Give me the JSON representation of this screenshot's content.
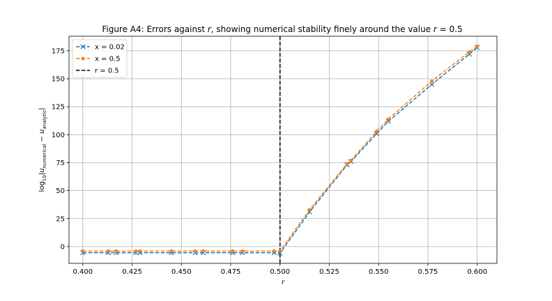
{
  "chart_data": {
    "type": "line",
    "title": "Figure A4: Errors against r, showing numerical stability finely around the value r = 0.5",
    "xlabel": "r",
    "ylabel": "log10|u_numerical − u_analytic|",
    "xlim": [
      0.393,
      0.61
    ],
    "ylim": [
      -15,
      188
    ],
    "xticks": [
      0.4,
      0.425,
      0.45,
      0.475,
      0.5,
      0.525,
      0.55,
      0.575,
      0.6
    ],
    "xtick_labels": [
      "0.400",
      "0.425",
      "0.450",
      "0.475",
      "0.500",
      "0.525",
      "0.550",
      "0.575",
      "0.600"
    ],
    "yticks": [
      0,
      25,
      50,
      75,
      100,
      125,
      150,
      175
    ],
    "ytick_labels": [
      "0",
      "25",
      "50",
      "75",
      "100",
      "125",
      "150",
      "175"
    ],
    "grid": true,
    "legend_position": "top-left",
    "vline": {
      "x": 0.5,
      "label": "r = 0.5",
      "color": "#000000"
    },
    "series": [
      {
        "name": "x = 0.02",
        "color": "#1f77b4",
        "marker": "x",
        "x": [
          0.4,
          0.413,
          0.417,
          0.427,
          0.429,
          0.445,
          0.457,
          0.461,
          0.476,
          0.481,
          0.497,
          0.5,
          0.515,
          0.534,
          0.536,
          0.549,
          0.555,
          0.577,
          0.596,
          0.6
        ],
        "y": [
          -5.5,
          -5.5,
          -5.5,
          -5.5,
          -5.5,
          -5.5,
          -5.5,
          -5.5,
          -5.5,
          -5.5,
          -5.5,
          -6,
          31,
          73,
          76,
          101,
          112,
          145,
          172,
          178
        ]
      },
      {
        "name": "x = 0.5",
        "color": "#ff7f0e",
        "marker": "o",
        "x": [
          0.4,
          0.413,
          0.417,
          0.427,
          0.429,
          0.445,
          0.457,
          0.461,
          0.476,
          0.481,
          0.497,
          0.5,
          0.515,
          0.534,
          0.536,
          0.549,
          0.555,
          0.577,
          0.596,
          0.6
        ],
        "y": [
          -4,
          -4,
          -4,
          -4,
          -4,
          -4,
          -4,
          -4,
          -4,
          -4,
          -4,
          -4,
          33,
          74,
          77,
          103,
          114,
          148,
          174,
          179
        ]
      }
    ]
  }
}
